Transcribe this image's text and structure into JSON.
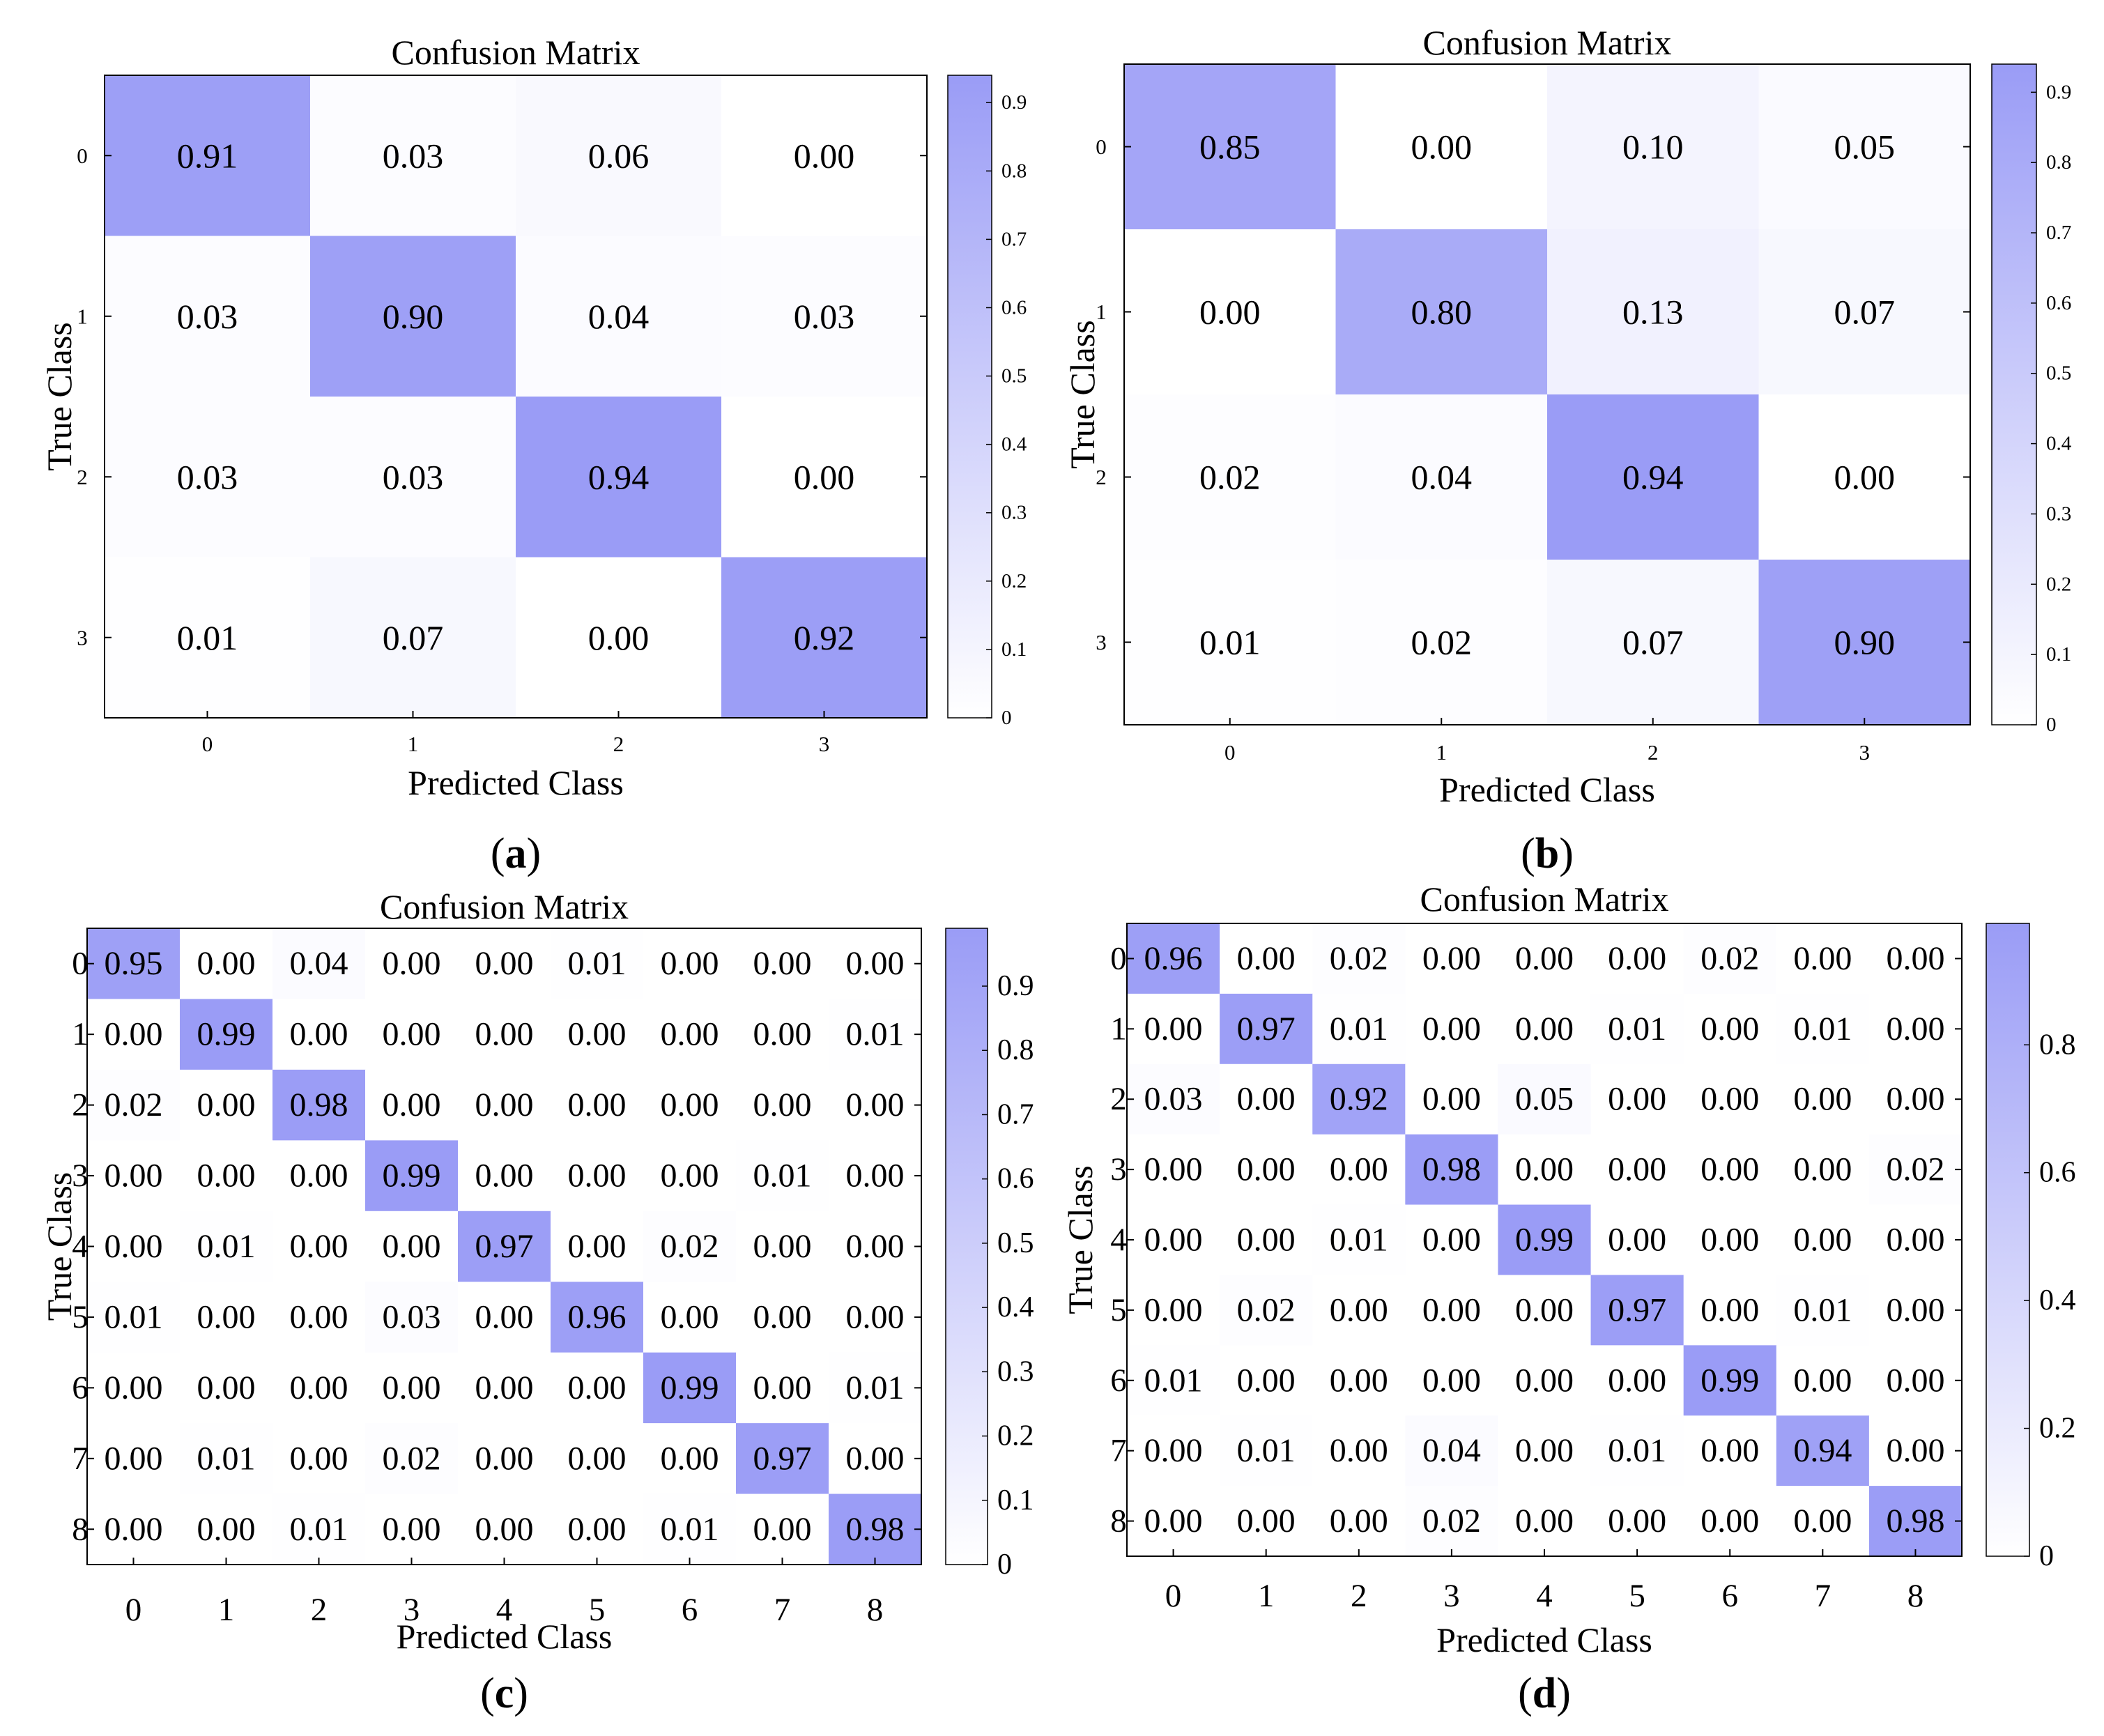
{
  "colors": {
    "cell_max": "#9a9cf6",
    "cell_min": "#ffffff",
    "frame": "#000000",
    "text": "#000000"
  },
  "chart_data": [
    {
      "type": "heatmap",
      "panel_label": "(a)",
      "title": "Confusion Matrix",
      "xlabel": "Predicted Class",
      "ylabel": "True Class",
      "x_ticks": [
        "0",
        "1",
        "2",
        "3"
      ],
      "y_ticks": [
        "0",
        "1",
        "2",
        "3"
      ],
      "values": [
        [
          0.91,
          0.03,
          0.06,
          0.0
        ],
        [
          0.03,
          0.9,
          0.04,
          0.03
        ],
        [
          0.03,
          0.03,
          0.94,
          0.0
        ],
        [
          0.01,
          0.07,
          0.0,
          0.92
        ]
      ],
      "cell_labels": [
        [
          "0.91",
          "0.03",
          "0.06",
          "0.00"
        ],
        [
          "0.03",
          "0.90",
          "0.04",
          "0.03"
        ],
        [
          "0.03",
          "0.03",
          "0.94",
          "0.00"
        ],
        [
          "0.01",
          "0.07",
          "0.00",
          "0.92"
        ]
      ],
      "colorbar": {
        "range": [
          0,
          0.94
        ],
        "ticks": [
          0,
          0.1,
          0.2,
          0.3,
          0.4,
          0.5,
          0.6,
          0.7,
          0.8,
          0.9
        ],
        "tick_labels": [
          "0",
          "0.1",
          "0.2",
          "0.3",
          "0.4",
          "0.5",
          "0.6",
          "0.7",
          "0.8",
          "0.9"
        ]
      }
    },
    {
      "type": "heatmap",
      "panel_label": "(b)",
      "title": "Confusion Matrix",
      "xlabel": "Predicted Class",
      "ylabel": "True Class",
      "x_ticks": [
        "0",
        "1",
        "2",
        "3"
      ],
      "y_ticks": [
        "0",
        "1",
        "2",
        "3"
      ],
      "values": [
        [
          0.85,
          0.0,
          0.1,
          0.05
        ],
        [
          0.0,
          0.8,
          0.13,
          0.07
        ],
        [
          0.02,
          0.04,
          0.94,
          0.0
        ],
        [
          0.01,
          0.02,
          0.07,
          0.9
        ]
      ],
      "cell_labels": [
        [
          "0.85",
          "0.00",
          "0.10",
          "0.05"
        ],
        [
          "0.00",
          "0.80",
          "0.13",
          "0.07"
        ],
        [
          "0.02",
          "0.04",
          "0.94",
          "0.00"
        ],
        [
          "0.01",
          "0.02",
          "0.07",
          "0.90"
        ]
      ],
      "colorbar": {
        "range": [
          0,
          0.94
        ],
        "ticks": [
          0,
          0.1,
          0.2,
          0.3,
          0.4,
          0.5,
          0.6,
          0.7,
          0.8,
          0.9
        ],
        "tick_labels": [
          "0",
          "0.1",
          "0.2",
          "0.3",
          "0.4",
          "0.5",
          "0.6",
          "0.7",
          "0.8",
          "0.9"
        ]
      }
    },
    {
      "type": "heatmap",
      "panel_label": "(c)",
      "title": "Confusion Matrix",
      "xlabel": "Predicted Class",
      "ylabel": "True Class",
      "x_ticks": [
        "0",
        "1",
        "2",
        "3",
        "4",
        "5",
        "6",
        "7",
        "8"
      ],
      "y_ticks": [
        "0",
        "1",
        "2",
        "3",
        "4",
        "5",
        "6",
        "7",
        "8"
      ],
      "values": [
        [
          0.95,
          0.0,
          0.04,
          0.0,
          0.0,
          0.01,
          0.0,
          0.0,
          0.0
        ],
        [
          0.0,
          0.99,
          0.0,
          0.0,
          0.0,
          0.0,
          0.0,
          0.0,
          0.01
        ],
        [
          0.02,
          0.0,
          0.98,
          0.0,
          0.0,
          0.0,
          0.0,
          0.0,
          0.0
        ],
        [
          0.0,
          0.0,
          0.0,
          0.99,
          0.0,
          0.0,
          0.0,
          0.01,
          0.0
        ],
        [
          0.0,
          0.01,
          0.0,
          0.0,
          0.97,
          0.0,
          0.02,
          0.0,
          0.0
        ],
        [
          0.01,
          0.0,
          0.0,
          0.03,
          0.0,
          0.96,
          0.0,
          0.0,
          0.0
        ],
        [
          0.0,
          0.0,
          0.0,
          0.0,
          0.0,
          0.0,
          0.99,
          0.0,
          0.01
        ],
        [
          0.0,
          0.01,
          0.0,
          0.02,
          0.0,
          0.0,
          0.0,
          0.97,
          0.0
        ],
        [
          0.0,
          0.0,
          0.01,
          0.0,
          0.0,
          0.0,
          0.01,
          0.0,
          0.98
        ]
      ],
      "cell_labels": [
        [
          "0.95",
          "0.00",
          "0.04",
          "0.00",
          "0.00",
          "0.01",
          "0.00",
          "0.00",
          "0.00"
        ],
        [
          "0.00",
          "0.99",
          "0.00",
          "0.00",
          "0.00",
          "0.00",
          "0.00",
          "0.00",
          "0.01"
        ],
        [
          "0.02",
          "0.00",
          "0.98",
          "0.00",
          "0.00",
          "0.00",
          "0.00",
          "0.00",
          "0.00"
        ],
        [
          "0.00",
          "0.00",
          "0.00",
          "0.99",
          "0.00",
          "0.00",
          "0.00",
          "0.01",
          "0.00"
        ],
        [
          "0.00",
          "0.01",
          "0.00",
          "0.00",
          "0.97",
          "0.00",
          "0.02",
          "0.00",
          "0.00"
        ],
        [
          "0.01",
          "0.00",
          "0.00",
          "0.03",
          "0.00",
          "0.96",
          "0.00",
          "0.00",
          "0.00"
        ],
        [
          "0.00",
          "0.00",
          "0.00",
          "0.00",
          "0.00",
          "0.00",
          "0.99",
          "0.00",
          "0.01"
        ],
        [
          "0.00",
          "0.01",
          "0.00",
          "0.02",
          "0.00",
          "0.00",
          "0.00",
          "0.97",
          "0.00"
        ],
        [
          "0.00",
          "0.00",
          "0.01",
          "0.00",
          "0.00",
          "0.00",
          "0.01",
          "0.00",
          "0.98"
        ]
      ],
      "colorbar": {
        "range": [
          0,
          0.99
        ],
        "ticks": [
          0,
          0.1,
          0.2,
          0.3,
          0.4,
          0.5,
          0.6,
          0.7,
          0.8,
          0.9
        ],
        "tick_labels": [
          "0",
          "0.1",
          "0.2",
          "0.3",
          "0.4",
          "0.5",
          "0.6",
          "0.7",
          "0.8",
          "0.9"
        ]
      }
    },
    {
      "type": "heatmap",
      "panel_label": "(d)",
      "title": "Confusion Matrix",
      "xlabel": "Predicted Class",
      "ylabel": "True Class",
      "x_ticks": [
        "0",
        "1",
        "2",
        "3",
        "4",
        "5",
        "6",
        "7",
        "8"
      ],
      "y_ticks": [
        "0",
        "1",
        "2",
        "3",
        "4",
        "5",
        "6",
        "7",
        "8"
      ],
      "values": [
        [
          0.96,
          0.0,
          0.02,
          0.0,
          0.0,
          0.0,
          0.02,
          0.0,
          0.0
        ],
        [
          0.0,
          0.97,
          0.01,
          0.0,
          0.0,
          0.01,
          0.0,
          0.01,
          0.0
        ],
        [
          0.03,
          0.0,
          0.92,
          0.0,
          0.05,
          0.0,
          0.0,
          0.0,
          0.0
        ],
        [
          0.0,
          0.0,
          0.0,
          0.98,
          0.0,
          0.0,
          0.0,
          0.0,
          0.02
        ],
        [
          0.0,
          0.0,
          0.01,
          0.0,
          0.99,
          0.0,
          0.0,
          0.0,
          0.0
        ],
        [
          0.0,
          0.02,
          0.0,
          0.0,
          0.0,
          0.97,
          0.0,
          0.01,
          0.0
        ],
        [
          0.01,
          0.0,
          0.0,
          0.0,
          0.0,
          0.0,
          0.99,
          0.0,
          0.0
        ],
        [
          0.0,
          0.01,
          0.0,
          0.04,
          0.0,
          0.01,
          0.0,
          0.94,
          0.0
        ],
        [
          0.0,
          0.0,
          0.0,
          0.02,
          0.0,
          0.0,
          0.0,
          0.0,
          0.98
        ]
      ],
      "cell_labels": [
        [
          "0.96",
          "0.00",
          "0.02",
          "0.00",
          "0.00",
          "0.00",
          "0.02",
          "0.00",
          "0.00"
        ],
        [
          "0.00",
          "0.97",
          "0.01",
          "0.00",
          "0.00",
          "0.01",
          "0.00",
          "0.01",
          "0.00"
        ],
        [
          "0.03",
          "0.00",
          "0.92",
          "0.00",
          "0.05",
          "0.00",
          "0.00",
          "0.00",
          "0.00"
        ],
        [
          "0.00",
          "0.00",
          "0.00",
          "0.98",
          "0.00",
          "0.00",
          "0.00",
          "0.00",
          "0.02"
        ],
        [
          "0.00",
          "0.00",
          "0.01",
          "0.00",
          "0.99",
          "0.00",
          "0.00",
          "0.00",
          "0.00"
        ],
        [
          "0.00",
          "0.02",
          "0.00",
          "0.00",
          "0.00",
          "0.97",
          "0.00",
          "0.01",
          "0.00"
        ],
        [
          "0.01",
          "0.00",
          "0.00",
          "0.00",
          "0.00",
          "0.00",
          "0.99",
          "0.00",
          "0.00"
        ],
        [
          "0.00",
          "0.01",
          "0.00",
          "0.04",
          "0.00",
          "0.01",
          "0.00",
          "0.94",
          "0.00"
        ],
        [
          "0.00",
          "0.00",
          "0.00",
          "0.02",
          "0.00",
          "0.00",
          "0.00",
          "0.00",
          "0.98"
        ]
      ],
      "colorbar": {
        "range": [
          0,
          0.99
        ],
        "ticks": [
          0,
          0.2,
          0.4,
          0.6,
          0.8
        ],
        "tick_labels": [
          "0",
          "0.2",
          "0.4",
          "0.6",
          "0.8"
        ]
      }
    }
  ]
}
